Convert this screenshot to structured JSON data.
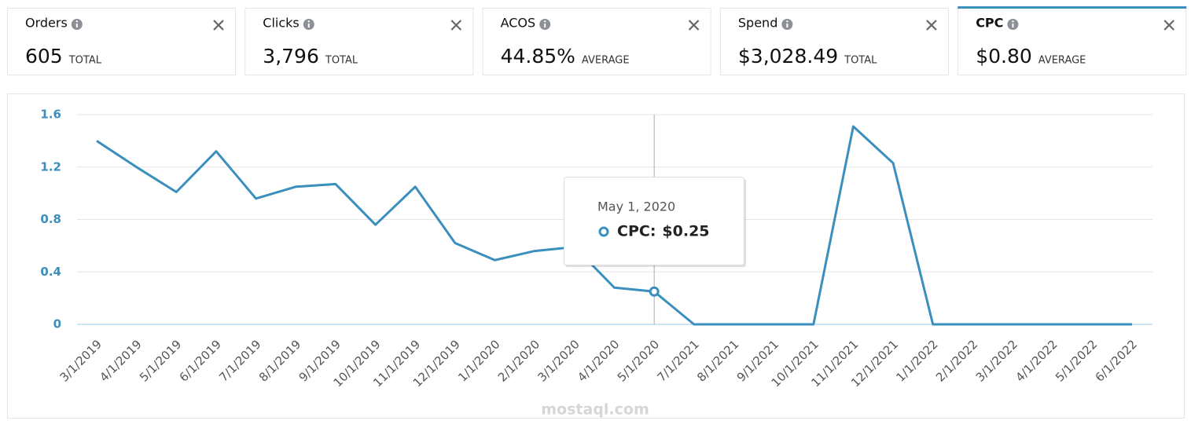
{
  "cards": [
    {
      "title": "Orders",
      "value": "605",
      "unit": "TOTAL",
      "selected": false
    },
    {
      "title": "Clicks",
      "value": "3,796",
      "unit": "TOTAL",
      "selected": false
    },
    {
      "title": "ACOS",
      "value": "44.85%",
      "unit": "AVERAGE",
      "selected": false
    },
    {
      "title": "Spend",
      "value": "$3,028.49",
      "unit": "TOTAL",
      "selected": false
    },
    {
      "title": "CPC",
      "value": "$0.80",
      "unit": "AVERAGE",
      "selected": true
    }
  ],
  "chart_data": {
    "type": "line",
    "color": "#3a8fbe",
    "categories": [
      "3/1/2019",
      "4/1/2019",
      "5/1/2019",
      "6/1/2019",
      "7/1/2019",
      "8/1/2019",
      "9/1/2019",
      "10/1/2019",
      "11/1/2019",
      "12/1/2019",
      "1/1/2020",
      "2/1/2020",
      "3/1/2020",
      "4/1/2020",
      "5/1/2020",
      "7/1/2021",
      "8/1/2021",
      "9/1/2021",
      "10/1/2021",
      "11/1/2021",
      "12/1/2021",
      "1/1/2022",
      "2/1/2022",
      "3/1/2022",
      "4/1/2022",
      "5/1/2022",
      "6/1/2022"
    ],
    "values": [
      1.4,
      1.2,
      1.01,
      1.32,
      0.96,
      1.05,
      1.07,
      0.76,
      1.05,
      0.62,
      0.49,
      0.56,
      0.59,
      0.28,
      0.25,
      0,
      0,
      0,
      0,
      1.51,
      1.23,
      0,
      0,
      0,
      0,
      0,
      0
    ],
    "ylim": [
      0,
      1.6
    ],
    "yticks": [
      0,
      0.4,
      0.8,
      1.2,
      1.6
    ],
    "grid": true,
    "highlight": "5/1/2020",
    "tooltip": {
      "date": "May 1, 2020",
      "label": "CPC:",
      "value": "$0.25"
    }
  },
  "watermark": "mostaql.com"
}
